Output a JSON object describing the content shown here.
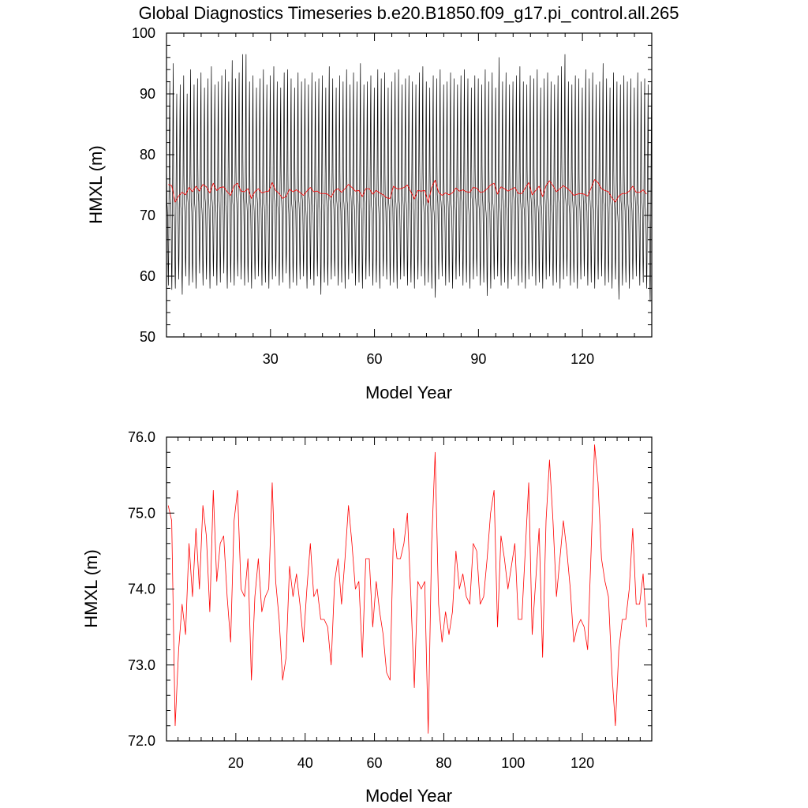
{
  "figure": {
    "title": "Global Diagnostics Timeseries b.e20.B1850.f09_g17.pi_control.all.265"
  },
  "chart_data": [
    {
      "type": "line",
      "ylabel": "HMXL (m)",
      "xlabel": "Model Year",
      "xlim": [
        0,
        140
      ],
      "ylim": [
        50,
        100
      ],
      "xticks": [
        30,
        60,
        90,
        120
      ],
      "xtick_labels": [
        "30",
        "60",
        "90",
        "120"
      ],
      "yticks": [
        50,
        60,
        70,
        80,
        90,
        100
      ],
      "ytick_labels": [
        "50",
        "60",
        "70",
        "80",
        "90",
        "100"
      ],
      "grid": false,
      "legend": "none",
      "series": [
        {
          "kind": "monthly",
          "color": "#000000",
          "seasonal_cycle_profile": [
            76.5,
            72.0,
            71.5,
            70.5,
            67.5,
            62.0,
            59.5,
            63.5,
            71.0,
            78.0,
            86.0,
            90.5
          ],
          "annual_peaks": [
            92.0,
            95.0,
            90.0,
            91.5,
            93.0,
            90.0,
            94.0,
            91.5,
            92.5,
            93.5,
            91.0,
            92.5,
            94.5,
            91.5,
            92.0,
            93.0,
            94.0,
            92.0,
            95.5,
            92.5,
            93.5,
            96.5,
            96.5,
            92.0,
            93.0,
            91.0,
            92.5,
            94.0,
            91.5,
            93.0,
            94.5,
            92.0,
            91.0,
            93.5,
            94.0,
            92.5,
            91.0,
            93.5,
            92.0,
            92.5,
            91.5,
            93.5,
            92.0,
            92.5,
            93.0,
            91.0,
            94.5,
            92.5,
            91.0,
            93.0,
            92.0,
            94.0,
            91.5,
            93.5,
            92.0,
            95.0,
            91.5,
            92.0,
            93.0,
            91.0,
            94.0,
            92.5,
            93.5,
            91.0,
            92.0,
            93.5,
            94.0,
            91.5,
            92.5,
            93.0,
            92.0,
            91.5,
            93.5,
            94.5,
            92.0,
            91.0,
            93.0,
            92.5,
            94.0,
            91.5,
            92.0,
            93.5,
            92.5,
            91.5,
            93.0,
            94.0,
            92.5,
            91.0,
            93.0,
            92.5,
            91.5,
            94.0,
            92.0,
            93.5,
            91.0,
            96.0,
            92.0,
            93.5,
            91.5,
            92.0,
            93.0,
            94.5,
            92.0,
            91.5,
            93.0,
            92.5,
            94.0,
            91.0,
            92.5,
            93.5,
            92.0,
            91.5,
            93.0,
            94.5,
            96.5,
            92.0,
            91.5,
            93.0,
            92.5,
            91.0,
            94.0,
            92.5,
            93.5,
            91.5,
            92.0,
            95.0,
            92.5,
            91.0,
            93.5,
            92.0,
            91.5,
            93.0,
            92.0,
            92.5,
            91.0,
            93.5,
            92.0,
            92.5,
            91.5,
            92.0
          ],
          "annual_troughs": [
            58.5,
            57.8,
            58.0,
            59.5,
            57.0,
            60.0,
            58.5,
            59.0,
            58.0,
            60.5,
            58.5,
            59.5,
            58.0,
            60.0,
            58.5,
            59.0,
            60.5,
            58.0,
            59.0,
            58.5,
            60.0,
            59.5,
            58.5,
            59.0,
            58.0,
            59.5,
            60.0,
            58.5,
            59.0,
            58.0,
            59.5,
            60.0,
            58.5,
            59.0,
            60.5,
            58.0,
            59.0,
            58.5,
            59.5,
            60.0,
            58.0,
            59.5,
            58.5,
            60.0,
            57.0,
            59.0,
            58.5,
            59.5,
            60.0,
            58.5,
            59.0,
            58.0,
            59.5,
            60.5,
            58.5,
            59.0,
            58.0,
            59.5,
            60.0,
            58.5,
            59.0,
            58.0,
            60.0,
            59.5,
            58.5,
            59.0,
            58.0,
            59.5,
            60.0,
            58.5,
            59.0,
            58.0,
            59.5,
            60.0,
            58.5,
            59.0,
            58.0,
            56.5,
            59.5,
            60.0,
            58.5,
            59.0,
            58.0,
            59.5,
            60.0,
            58.5,
            59.0,
            58.0,
            59.5,
            60.0,
            58.5,
            59.0,
            56.8,
            58.0,
            59.5,
            60.0,
            58.5,
            59.0,
            58.0,
            59.5,
            60.0,
            58.5,
            59.0,
            58.0,
            59.5,
            60.0,
            58.5,
            59.0,
            58.0,
            59.5,
            60.0,
            58.5,
            59.0,
            58.0,
            59.5,
            60.0,
            58.5,
            59.0,
            58.0,
            59.5,
            60.0,
            58.5,
            59.0,
            58.0,
            59.5,
            60.0,
            58.5,
            59.0,
            58.0,
            59.5,
            56.2,
            58.5,
            59.0,
            58.0,
            59.5,
            60.0,
            58.5,
            59.0,
            58.0,
            55.8
          ]
        },
        {
          "kind": "annual_mean",
          "color": "#ff0000",
          "x_start": 0.5,
          "x_step": 1,
          "values": [
            75.1,
            74.9,
            72.2,
            73.2,
            73.8,
            73.4,
            74.6,
            73.9,
            74.8,
            74.0,
            75.1,
            74.7,
            73.7,
            75.3,
            74.1,
            74.6,
            74.7,
            73.9,
            73.3,
            74.9,
            75.3,
            74.0,
            73.9,
            74.4,
            72.8,
            73.9,
            74.4,
            73.7,
            73.9,
            74.0,
            75.4,
            74.1,
            73.6,
            72.8,
            73.1,
            74.3,
            73.9,
            74.2,
            73.8,
            73.3,
            74.0,
            74.6,
            73.9,
            74.0,
            73.6,
            73.6,
            73.5,
            73.0,
            74.1,
            74.4,
            73.8,
            74.4,
            75.1,
            74.6,
            74.0,
            74.1,
            73.1,
            74.4,
            74.4,
            73.5,
            74.1,
            73.7,
            73.4,
            72.9,
            72.8,
            74.8,
            74.4,
            74.4,
            74.6,
            75.0,
            73.9,
            72.7,
            74.1,
            74.0,
            74.1,
            72.1,
            74.6,
            75.8,
            73.8,
            73.3,
            73.7,
            73.4,
            73.7,
            74.5,
            74.0,
            74.2,
            73.9,
            73.8,
            74.6,
            74.5,
            73.8,
            73.9,
            74.4,
            75.0,
            75.3,
            73.5,
            74.7,
            74.4,
            74.0,
            74.3,
            74.6,
            73.6,
            73.6,
            74.5,
            75.4,
            73.4,
            74.1,
            74.8,
            73.1,
            74.9,
            75.7,
            74.9,
            73.9,
            74.4,
            74.9,
            74.5,
            74.0,
            73.3,
            73.5,
            73.6,
            73.5,
            73.2,
            74.5,
            75.9,
            75.4,
            74.4,
            74.1,
            73.9,
            72.9,
            72.2,
            73.2,
            73.6,
            73.6,
            74.0,
            74.8,
            73.8,
            73.8,
            74.2,
            73.5
          ]
        }
      ]
    },
    {
      "type": "line",
      "ylabel": "HMXL (m)",
      "xlabel": "Model Year",
      "xlim": [
        0,
        140
      ],
      "ylim": [
        72.0,
        76.0
      ],
      "xticks": [
        20,
        40,
        60,
        80,
        100,
        120
      ],
      "xtick_labels": [
        "20",
        "40",
        "60",
        "80",
        "100",
        "120"
      ],
      "yticks": [
        72.0,
        73.0,
        74.0,
        75.0,
        76.0
      ],
      "ytick_labels": [
        "72.0",
        "73.0",
        "74.0",
        "75.0",
        "76.0"
      ],
      "grid": false,
      "legend": "none",
      "series": [
        {
          "kind": "annual_mean",
          "color": "#ff0000",
          "x_start": 0.5,
          "x_step": 1,
          "values": [
            75.1,
            74.9,
            72.2,
            73.2,
            73.8,
            73.4,
            74.6,
            73.9,
            74.8,
            74.0,
            75.1,
            74.7,
            73.7,
            75.3,
            74.1,
            74.6,
            74.7,
            73.9,
            73.3,
            74.9,
            75.3,
            74.0,
            73.9,
            74.4,
            72.8,
            73.9,
            74.4,
            73.7,
            73.9,
            74.0,
            75.4,
            74.1,
            73.6,
            72.8,
            73.1,
            74.3,
            73.9,
            74.2,
            73.8,
            73.3,
            74.0,
            74.6,
            73.9,
            74.0,
            73.6,
            73.6,
            73.5,
            73.0,
            74.1,
            74.4,
            73.8,
            74.4,
            75.1,
            74.6,
            74.0,
            74.1,
            73.1,
            74.4,
            74.4,
            73.5,
            74.1,
            73.7,
            73.4,
            72.9,
            72.8,
            74.8,
            74.4,
            74.4,
            74.6,
            75.0,
            73.9,
            72.7,
            74.1,
            74.0,
            74.1,
            72.1,
            74.6,
            75.8,
            73.8,
            73.3,
            73.7,
            73.4,
            73.7,
            74.5,
            74.0,
            74.2,
            73.9,
            73.8,
            74.6,
            74.5,
            73.8,
            73.9,
            74.4,
            75.0,
            75.3,
            73.5,
            74.7,
            74.4,
            74.0,
            74.3,
            74.6,
            73.6,
            73.6,
            74.5,
            75.4,
            73.4,
            74.1,
            74.8,
            73.1,
            74.9,
            75.7,
            74.9,
            73.9,
            74.4,
            74.9,
            74.5,
            74.0,
            73.3,
            73.5,
            73.6,
            73.5,
            73.2,
            74.5,
            75.9,
            75.4,
            74.4,
            74.1,
            73.9,
            72.9,
            72.2,
            73.2,
            73.6,
            73.6,
            74.0,
            74.8,
            73.8,
            73.8,
            74.2,
            73.5
          ]
        }
      ]
    }
  ]
}
